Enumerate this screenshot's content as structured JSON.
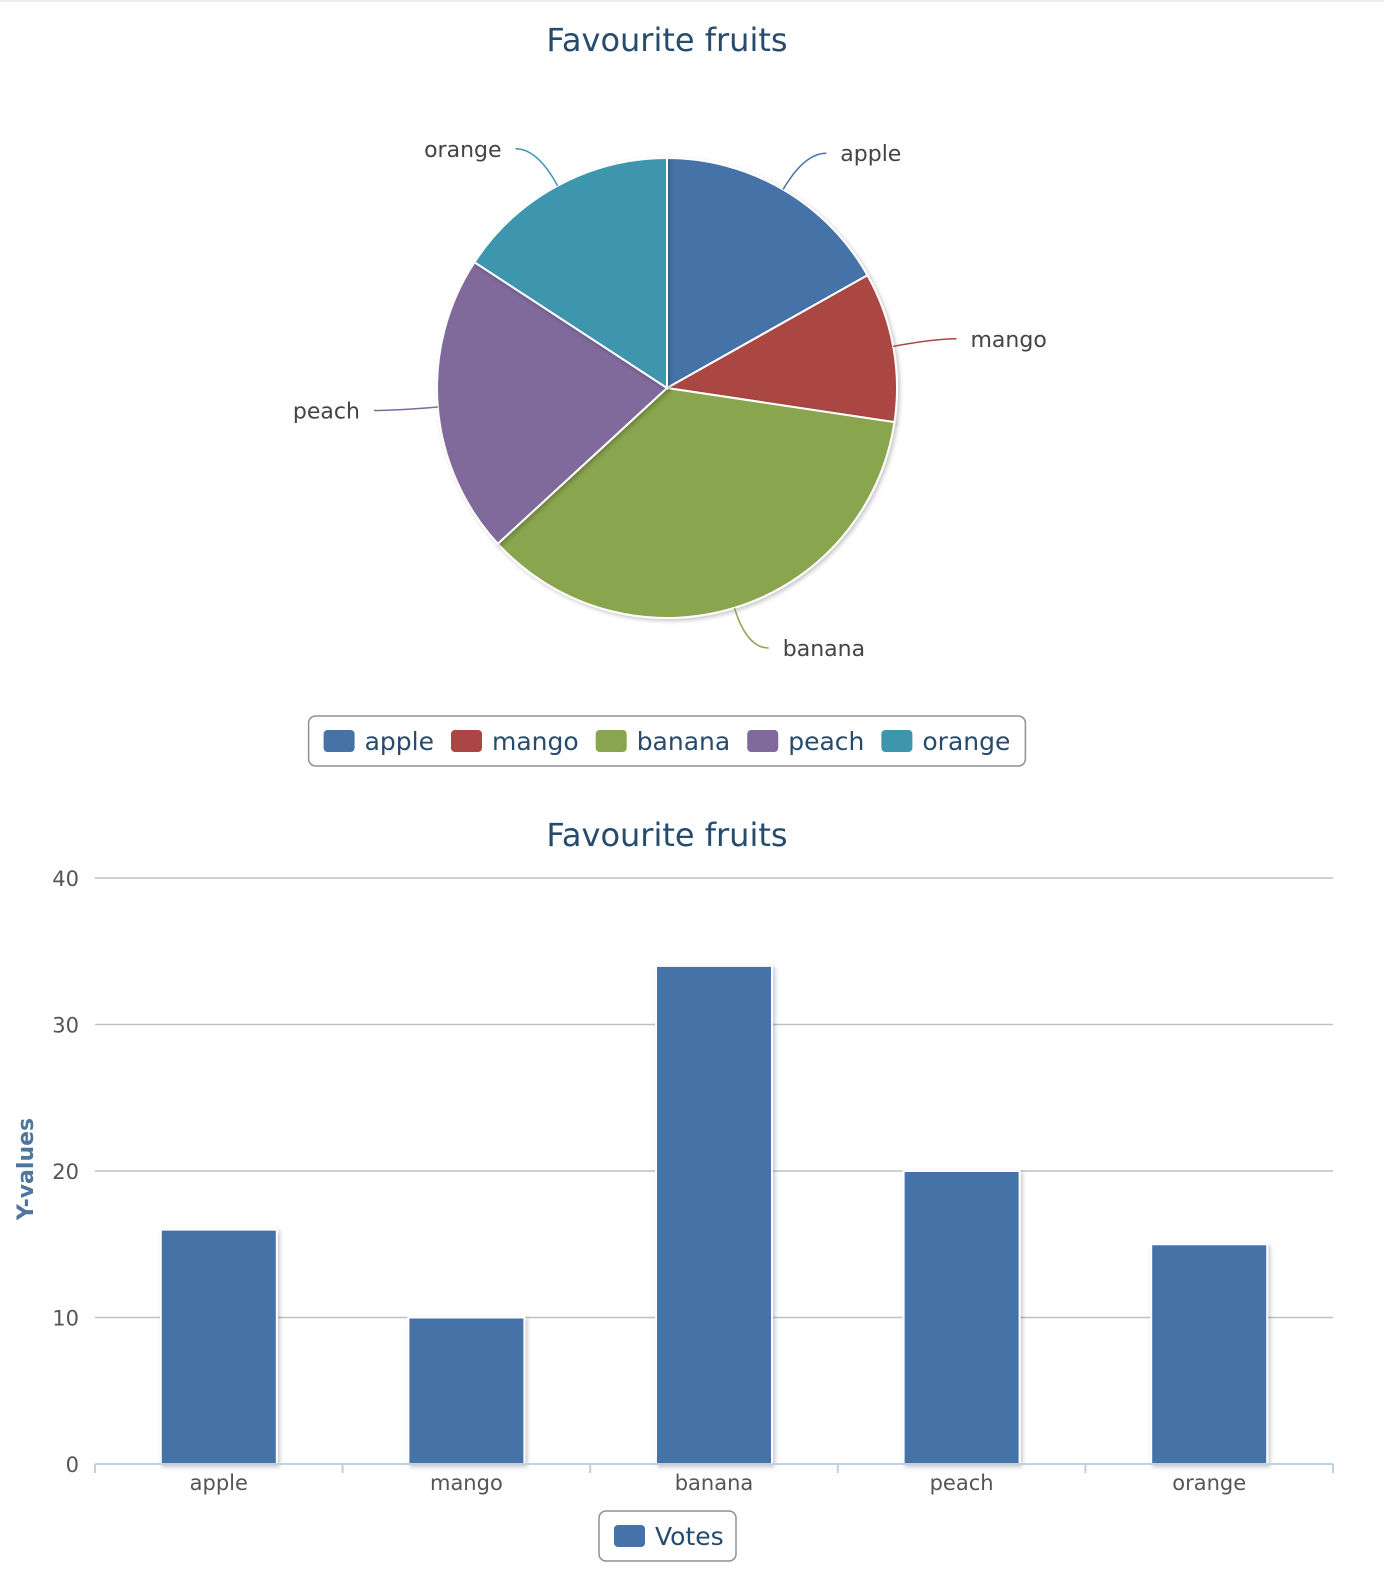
{
  "chart_data": [
    {
      "type": "pie",
      "title": "Favourite fruits",
      "categories": [
        "apple",
        "mango",
        "banana",
        "peach",
        "orange"
      ],
      "values": [
        16,
        10,
        34,
        20,
        15
      ],
      "colors": [
        "#4572a7",
        "#aa4643",
        "#89a54e",
        "#80699b",
        "#3d96ae"
      ],
      "legend": {
        "position": "bottom-center",
        "entries": [
          "apple",
          "mango",
          "banana",
          "peach",
          "orange"
        ]
      }
    },
    {
      "type": "bar",
      "title": "Favourite fruits",
      "categories": [
        "apple",
        "mango",
        "banana",
        "peach",
        "orange"
      ],
      "series": [
        {
          "name": "Votes",
          "values": [
            16,
            10,
            34,
            20,
            15
          ],
          "color": "#4572a7"
        }
      ],
      "xlabel": "",
      "ylabel": "Y-values",
      "ylim": [
        0,
        40
      ],
      "yticks": [
        0,
        10,
        20,
        30,
        40
      ],
      "grid": true,
      "legend": {
        "position": "bottom-center",
        "entries": [
          "Votes"
        ]
      }
    }
  ]
}
